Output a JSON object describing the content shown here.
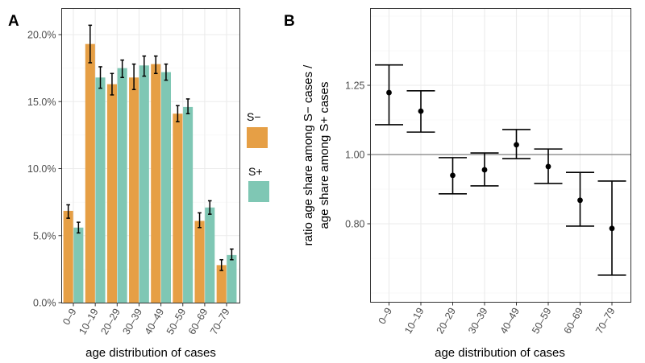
{
  "chart_data": [
    {
      "panel": "A",
      "type": "bar",
      "title": "",
      "xlabel": "age distribution of cases",
      "ylabel": "",
      "ylim": [
        0,
        0.2
      ],
      "yticks": [
        0,
        0.05,
        0.1,
        0.15,
        0.2
      ],
      "ytick_labels": [
        "0.0%",
        "5.0%",
        "10.0%",
        "15.0%",
        "20.0%"
      ],
      "grid": true,
      "legend_position": "right",
      "categories": [
        "0–9",
        "10–19",
        "20–29",
        "30–39",
        "40–49",
        "50–59",
        "60–69",
        "70–79"
      ],
      "series": [
        {
          "name": "S−",
          "color": "#E69F45",
          "values": [
            0.0685,
            0.193,
            0.163,
            0.168,
            0.178,
            0.141,
            0.061,
            0.028
          ],
          "lower": [
            0.063,
            0.179,
            0.155,
            0.159,
            0.171,
            0.135,
            0.056,
            0.024
          ],
          "upper": [
            0.073,
            0.207,
            0.171,
            0.178,
            0.184,
            0.147,
            0.067,
            0.032
          ]
        },
        {
          "name": "S+",
          "color": "#7FC7B4",
          "values": [
            0.056,
            0.168,
            0.175,
            0.177,
            0.172,
            0.146,
            0.071,
            0.0355
          ],
          "lower": [
            0.052,
            0.16,
            0.168,
            0.169,
            0.166,
            0.141,
            0.066,
            0.032
          ],
          "upper": [
            0.06,
            0.176,
            0.181,
            0.184,
            0.178,
            0.152,
            0.076,
            0.04
          ]
        }
      ]
    },
    {
      "panel": "B",
      "type": "scatter",
      "title": "",
      "xlabel": "age distribution of cases",
      "ylabel": [
        "ratio age share among S− cases /",
        "age share among S+ cases"
      ],
      "yscale": "log",
      "ylim": [
        0.622,
        1.603
      ],
      "yticks": [
        0.8,
        1.0,
        1.25
      ],
      "ytick_labels": [
        "0.80",
        "1.00",
        "1.25"
      ],
      "reference_line": 1.0,
      "grid": true,
      "categories": [
        "0–9",
        "10–19",
        "20–29",
        "30–39",
        "40–49",
        "50–59",
        "60–69",
        "70–79"
      ],
      "values": [
        1.221,
        1.15,
        0.935,
        0.952,
        1.032,
        0.962,
        0.863,
        0.788
      ],
      "lower": [
        1.101,
        1.075,
        0.881,
        0.904,
        0.987,
        0.911,
        0.794,
        0.678
      ],
      "upper": [
        1.335,
        1.228,
        0.99,
        1.005,
        1.084,
        1.018,
        0.944,
        0.918
      ]
    }
  ],
  "panel_tags": [
    "A",
    "B"
  ],
  "legend": {
    "items": [
      {
        "label": "S−",
        "color": "#E69F45"
      },
      {
        "label": "S+",
        "color": "#7FC7B4"
      }
    ]
  }
}
